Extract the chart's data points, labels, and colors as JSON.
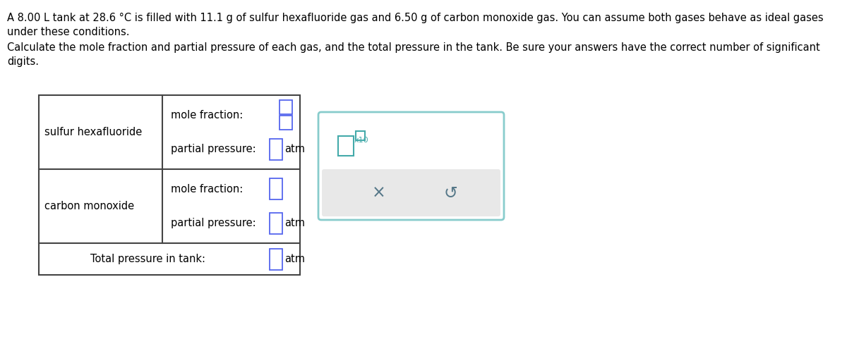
{
  "line1": "A 8.00 L tank at 28.6 °C is filled with 11.1 g of sulfur hexafluoride gas and 6.50 g of carbon monoxide gas. You can assume both gases behave as ideal gases",
  "line2": "under these conditions.",
  "line3": "Calculate the mole fraction and partial pressure of each gas, and the total pressure in the tank. Be sure your answers have the correct number of significant",
  "line4": "digits.",
  "row1_label": "sulfur hexafluoride",
  "row2_label": "carbon monoxide",
  "mole_fraction_label": "mole fraction:",
  "partial_pressure_label": "partial pressure:",
  "total_pressure_label": "Total pressure in tank:",
  "atm": "atm",
  "x10": "x10",
  "bg_color": "#ffffff",
  "table_border": "#444444",
  "input_border": "#5566ee",
  "input_border_cyan": "#44aaaa",
  "popup_border": "#88cccc",
  "popup_bg": "#ffffff",
  "popup_gray": "#e8e8e8",
  "symbol_x": "×",
  "symbol_undo": "↺",
  "symbol_color": "#557788"
}
